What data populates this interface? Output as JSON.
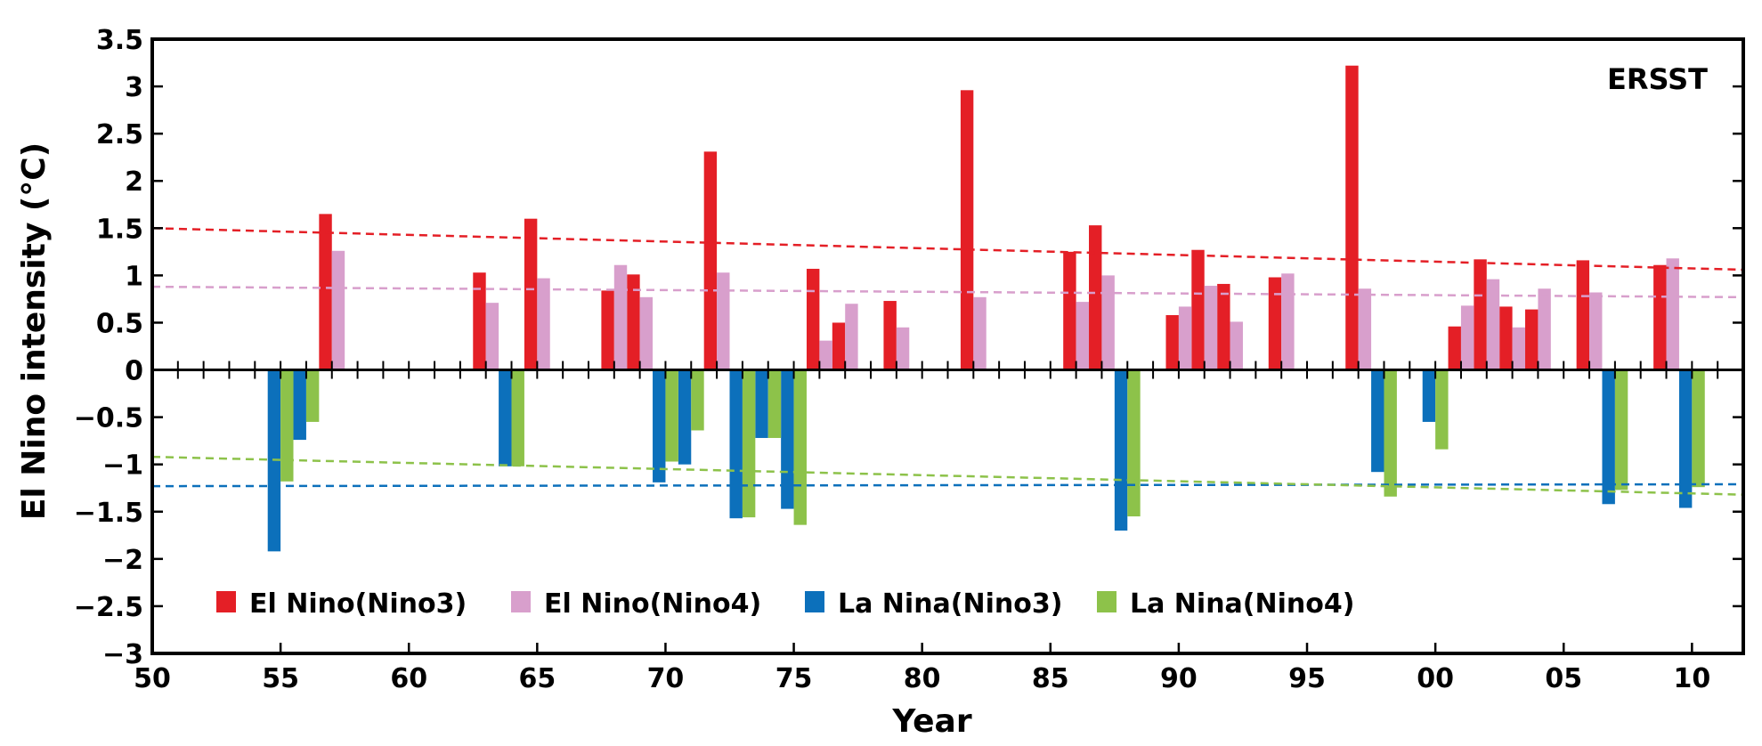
{
  "chart_data": {
    "type": "bar",
    "panel_label": "ERSST",
    "xlabel": "Year",
    "ylabel": "El Nino intensity (°C)",
    "xlim": [
      1950,
      2012
    ],
    "ylim": [
      -3,
      3.5
    ],
    "xticks": [
      1950,
      1955,
      1960,
      1965,
      1970,
      1975,
      1980,
      1985,
      1990,
      1995,
      2000,
      2005,
      2010
    ],
    "xtick_labels": [
      "50",
      "55",
      "60",
      "65",
      "70",
      "75",
      "80",
      "85",
      "90",
      "95",
      "00",
      "05",
      "10"
    ],
    "yticks": [
      3.5,
      3,
      2.5,
      2,
      1.5,
      1,
      0.5,
      0,
      -0.5,
      -1,
      -1.5,
      -2,
      -2.5,
      -3
    ],
    "ytick_labels": [
      "3.5",
      "3",
      "2.5",
      "2",
      "1.5",
      "1",
      "0.5",
      "0",
      "−0.5",
      "−1",
      "−1.5",
      "−2",
      "−2.5",
      "−3"
    ],
    "legend_position": "bottom-left",
    "series": [
      {
        "name": "El Nino(Nino3)",
        "color": "#e41f26",
        "x": [
          1957,
          1963,
          1965,
          1968,
          1969,
          1972,
          1976,
          1977,
          1979,
          1982,
          1986,
          1987,
          1990,
          1991,
          1992,
          1994,
          1997,
          2001,
          2002,
          2003,
          2004,
          2006,
          2009
        ],
        "values": [
          1.65,
          1.03,
          1.6,
          0.84,
          1.01,
          2.31,
          1.07,
          0.5,
          0.73,
          2.96,
          1.25,
          1.53,
          0.58,
          1.27,
          0.91,
          0.98,
          3.22,
          0.46,
          1.17,
          0.67,
          0.64,
          1.16,
          1.11
        ]
      },
      {
        "name": "El Nino(Nino4)",
        "color": "#d89fcc",
        "x": [
          1957,
          1963,
          1965,
          1968,
          1969,
          1972,
          1976,
          1977,
          1979,
          1982,
          1986,
          1987,
          1990,
          1991,
          1992,
          1994,
          1997,
          2001,
          2002,
          2003,
          2004,
          2006,
          2009
        ],
        "values": [
          1.26,
          0.71,
          0.97,
          1.11,
          0.77,
          1.03,
          0.31,
          0.7,
          0.45,
          0.77,
          0.72,
          1.0,
          0.67,
          0.89,
          0.51,
          1.02,
          0.86,
          0.68,
          0.96,
          0.45,
          0.86,
          0.82,
          1.18
        ]
      },
      {
        "name": "La Nina(Nino3)",
        "color": "#0c70bb",
        "x": [
          1955,
          1956,
          1964,
          1970,
          1971,
          1973,
          1974,
          1975,
          1988,
          1998,
          2000,
          2007,
          2010
        ],
        "values": [
          -1.92,
          -0.74,
          -1.02,
          -1.19,
          -1.0,
          -1.57,
          -0.72,
          -1.47,
          -1.7,
          -1.08,
          -0.55,
          -1.42,
          -1.46
        ]
      },
      {
        "name": "La Nina(Nino4)",
        "color": "#8dc24a",
        "x": [
          1955,
          1956,
          1964,
          1970,
          1971,
          1973,
          1974,
          1975,
          1988,
          1998,
          2000,
          2007,
          2010
        ],
        "values": [
          -1.18,
          -0.55,
          -1.02,
          -0.97,
          -0.64,
          -1.56,
          -0.72,
          -1.64,
          -1.55,
          -1.34,
          -0.84,
          -1.27,
          -1.24
        ]
      }
    ],
    "trend_lines": [
      {
        "series": "El Nino(Nino3)",
        "color": "#e41f26",
        "x": [
          1950,
          2012
        ],
        "y": [
          1.5,
          1.06
        ]
      },
      {
        "series": "El Nino(Nino4)",
        "color": "#d89fcc",
        "x": [
          1950,
          2012
        ],
        "y": [
          0.88,
          0.77
        ]
      },
      {
        "series": "La Nina(Nino3)",
        "color": "#0c70bb",
        "x": [
          1950,
          2012
        ],
        "y": [
          -1.23,
          -1.21
        ]
      },
      {
        "series": "La Nina(Nino4)",
        "color": "#8dc24a",
        "x": [
          1950,
          2012
        ],
        "y": [
          -0.92,
          -1.32
        ]
      }
    ]
  }
}
